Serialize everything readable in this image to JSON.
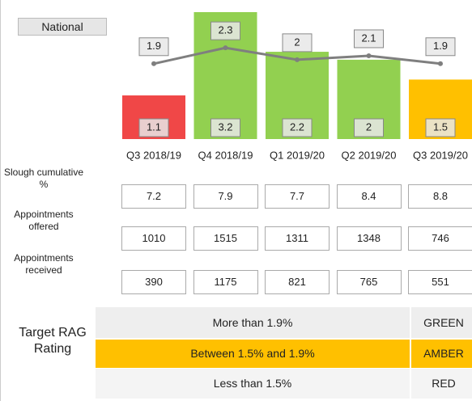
{
  "chart_data": {
    "type": "bar",
    "categories": [
      "Q3 2018/19",
      "Q4 2018/19",
      "Q1 2019/20",
      "Q2 2019/20",
      "Q3 2019/20"
    ],
    "series": [
      {
        "type": "bar",
        "values": [
          1.1,
          3.2,
          2.2,
          2.0,
          1.5
        ],
        "colors": [
          "#f04747",
          "#92d050",
          "#92d050",
          "#92d050",
          "#ffc000"
        ]
      },
      {
        "type": "line",
        "name": "National",
        "color": "#7f7f7f",
        "values": [
          1.9,
          2.3,
          2.0,
          2.1,
          1.9
        ]
      }
    ]
  },
  "table": {
    "rows": [
      {
        "label": "Slough cumulative %",
        "values": [
          7.2,
          7.9,
          7.7,
          8.4,
          8.8
        ]
      },
      {
        "label": "Appointments offered",
        "values": [
          1010,
          1515,
          1311,
          1348,
          746
        ]
      },
      {
        "label": "Appointments received",
        "values": [
          390,
          1175,
          821,
          765,
          551
        ]
      }
    ]
  },
  "rag": {
    "title": "Target RAG Rating",
    "rows": [
      {
        "range": "More than 1.9%",
        "rating": "GREEN",
        "color": "#eeeeee"
      },
      {
        "range": "Between 1.5% and 1.9%",
        "rating": "AMBER",
        "color": "#ffc000"
      },
      {
        "range": "Less than 1.5%",
        "rating": "RED",
        "color": "#f4f4f4"
      }
    ]
  }
}
